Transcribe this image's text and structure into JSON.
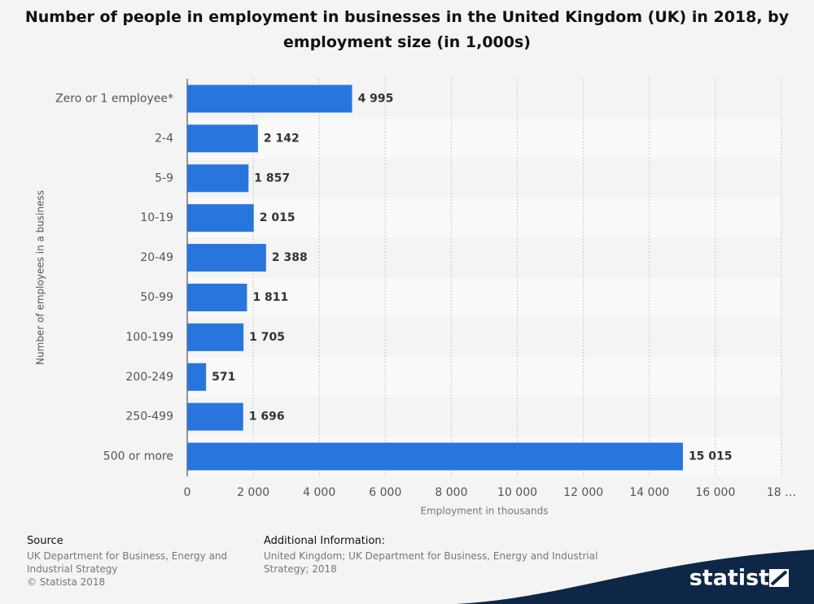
{
  "chart_data": {
    "type": "bar",
    "orientation": "horizontal",
    "title": "Number of people in employment in businesses in the United Kingdom (UK) in 2018, by employment size (in 1,000s)",
    "x_label": "Employment in thousands",
    "y_label": "Number of employees in a business",
    "categories": [
      "Zero or 1 employee*",
      "2-4",
      "5-9",
      "10-19",
      "20-49",
      "50-99",
      "100-199",
      "200-249",
      "250-499",
      "500 or more"
    ],
    "values": [
      4995,
      2142,
      1857,
      2015,
      2388,
      1811,
      1705,
      571,
      1696,
      15015
    ],
    "value_labels": [
      "4 995",
      "2 142",
      "1 857",
      "2 015",
      "2 388",
      "1 811",
      "1 705",
      "571",
      "1 696",
      "15 015"
    ],
    "color": "#2876dd",
    "xlim": [
      0,
      18000
    ],
    "xticks": [
      0,
      {
        "value": 2000,
        "label": "2 000"
      },
      {
        "value": 4000,
        "label": "4 000"
      },
      {
        "value": 6000,
        "label": "6 000"
      },
      {
        "value": 8000,
        "label": "8 000"
      },
      {
        "value": 10000,
        "label": "10 000"
      },
      {
        "value": 12000,
        "label": "12 000"
      },
      {
        "value": 14000,
        "label": "14 000"
      },
      {
        "value": 16000,
        "label": "16 000"
      },
      {
        "value": 18000,
        "label": "18 …"
      }
    ],
    "grid": true
  },
  "footer": {
    "source_title": "Source",
    "source_text": "UK Department for Business, Energy and Industrial Strategy",
    "copyright": "© Statista 2018",
    "info_title": "Additional Information:",
    "info_text": "United Kingdom; UK Department for Business, Energy and Industrial Strategy; 2018",
    "logo": "statista"
  }
}
